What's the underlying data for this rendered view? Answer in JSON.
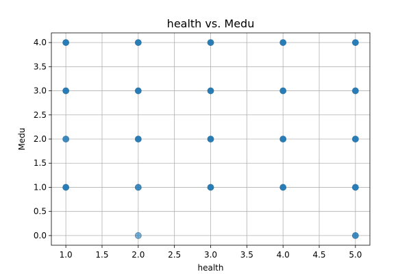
{
  "chart_data": {
    "type": "scatter",
    "title": "health vs. Medu",
    "xlabel": "health",
    "ylabel": "Medu",
    "xlim": [
      0.8,
      5.2
    ],
    "ylim": [
      -0.2,
      4.2
    ],
    "xticks": [
      1.0,
      1.5,
      2.0,
      2.5,
      3.0,
      3.5,
      4.0,
      4.5,
      5.0
    ],
    "yticks": [
      0.0,
      0.5,
      1.0,
      1.5,
      2.0,
      2.5,
      3.0,
      3.5,
      4.0
    ],
    "xtick_labels": [
      "1.0",
      "1.5",
      "2.0",
      "2.5",
      "3.0",
      "3.5",
      "4.0",
      "4.5",
      "5.0"
    ],
    "ytick_labels": [
      "0.0",
      "0.5",
      "1.0",
      "1.5",
      "2.0",
      "2.5",
      "3.0",
      "3.5",
      "4.0"
    ],
    "grid": true,
    "marker_color": "#1f77b4",
    "points": [
      {
        "x": 1,
        "y": 4,
        "density": "high"
      },
      {
        "x": 1,
        "y": 3,
        "density": "high"
      },
      {
        "x": 1,
        "y": 2,
        "density": "medium"
      },
      {
        "x": 1,
        "y": 1,
        "density": "high"
      },
      {
        "x": 2,
        "y": 4,
        "density": "high"
      },
      {
        "x": 2,
        "y": 3,
        "density": "high"
      },
      {
        "x": 2,
        "y": 2,
        "density": "high"
      },
      {
        "x": 2,
        "y": 1,
        "density": "medium"
      },
      {
        "x": 2,
        "y": 0,
        "density": "low"
      },
      {
        "x": 3,
        "y": 4,
        "density": "high"
      },
      {
        "x": 3,
        "y": 3,
        "density": "high"
      },
      {
        "x": 3,
        "y": 2,
        "density": "high"
      },
      {
        "x": 3,
        "y": 1,
        "density": "high"
      },
      {
        "x": 4,
        "y": 4,
        "density": "high"
      },
      {
        "x": 4,
        "y": 3,
        "density": "high"
      },
      {
        "x": 4,
        "y": 2,
        "density": "high"
      },
      {
        "x": 4,
        "y": 1,
        "density": "high"
      },
      {
        "x": 5,
        "y": 4,
        "density": "high"
      },
      {
        "x": 5,
        "y": 3,
        "density": "high"
      },
      {
        "x": 5,
        "y": 2,
        "density": "high"
      },
      {
        "x": 5,
        "y": 1,
        "density": "high"
      },
      {
        "x": 5,
        "y": 0,
        "density": "medium"
      }
    ]
  }
}
